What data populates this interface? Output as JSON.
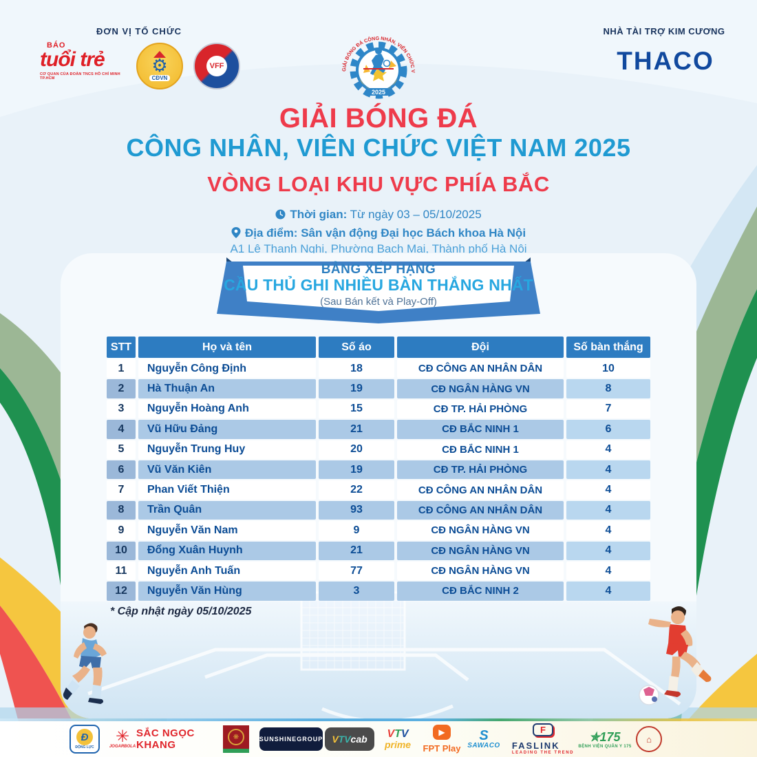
{
  "colors": {
    "background": "#e9f2f9",
    "title_red": "#ee3b4b",
    "title_blue": "#1f9ad2",
    "info_blue": "#2f86c5",
    "header_row": "#2d7cc1",
    "even_row": "#abc9e6",
    "cell_text": "#0b4c95",
    "thaco_navy": "#11499e",
    "ribbon_blue": "#3f80c6",
    "green_band": "#1f9150",
    "yellow_band": "#f5c63f",
    "red_band": "#ef5350"
  },
  "organizers": {
    "label": "ĐƠN VỊ TỔ CHỨC",
    "tuoitre": {
      "bao": "BÁO",
      "name": "tuổi trẻ",
      "tagline": "CƠ QUAN CỦA ĐOÀN TNCS HỒ CHÍ MINH TP.HCM"
    },
    "cdvn_label": "CĐVN",
    "vff_label": "VFF"
  },
  "sponsor_top": {
    "label": "NHÀ TÀI TRỢ KIM CƯƠNG",
    "brand": "THACO"
  },
  "event_logo": {
    "arc_text": "GIẢI BÓNG ĐÁ CÔNG NHÂN, VIÊN CHỨC VIỆT NAM",
    "year": "2025"
  },
  "title": {
    "line1": "GIẢI BÓNG ĐÁ",
    "line2": "CÔNG NHÂN, VIÊN CHỨC VIỆT NAM 2025",
    "line3": "VÒNG LOẠI KHU VỰC PHÍA BẮC"
  },
  "info": {
    "time_label": "Thời gian:",
    "time_value": " Từ ngày 03 – 05/10/2025",
    "venue_label": "Địa điểm:",
    "venue_value": " Sân vận động Đại học Bách khoa Hà Nội",
    "address": "A1 Lê Thanh Nghị, Phường Bạch Mai, Thành phố Hà Nội"
  },
  "banner": {
    "line1": "BẢNG XẾP HẠNG",
    "line2": "CẦU THỦ GHI NHIỀU BÀN THẮNG NHẤT",
    "line3": "(Sau Bán kết và Play-Off)"
  },
  "table": {
    "headers": [
      "STT",
      "Họ và tên",
      "Số áo",
      "Đội",
      "Số bàn thắng"
    ],
    "rows": [
      [
        "1",
        "Nguyễn Công Định",
        "18",
        "CĐ CÔNG AN NHÂN DÂN",
        "10"
      ],
      [
        "2",
        "Hà Thuận An",
        "19",
        "CĐ NGÂN HÀNG VN",
        "8"
      ],
      [
        "3",
        "Nguyễn Hoàng Anh",
        "15",
        "CĐ TP. HẢI PHÒNG",
        "7"
      ],
      [
        "4",
        "Vũ Hữu Đảng",
        "21",
        "CĐ BẮC NINH 1",
        "6"
      ],
      [
        "5",
        "Nguyễn Trung Huy",
        "20",
        "CĐ BẮC NINH 1",
        "4"
      ],
      [
        "6",
        "Vũ Văn Kiên",
        "19",
        "CĐ TP. HẢI PHÒNG",
        "4"
      ],
      [
        "7",
        "Phan Viết Thiện",
        "22",
        "CĐ CÔNG AN NHÂN DÂN",
        "4"
      ],
      [
        "8",
        "Trần Quân",
        "93",
        "CĐ CÔNG AN NHÂN DÂN",
        "4"
      ],
      [
        "9",
        "Nguyễn Văn Nam",
        "9",
        "CĐ NGÂN HÀNG VN",
        "4"
      ],
      [
        "10",
        "Đổng Xuân Huynh",
        "21",
        "CĐ NGÂN HÀNG VN",
        "4"
      ],
      [
        "11",
        "Nguyễn Anh Tuấn",
        "77",
        "CĐ NGÂN HÀNG VN",
        "4"
      ],
      [
        "12",
        "Nguyễn Văn Hùng",
        "3",
        "CĐ BẮC NINH 2",
        "4"
      ]
    ]
  },
  "footnote": "* Cập nhật ngày 05/10/2025",
  "footer_sponsors": {
    "dong_luc": {
      "d": "Đ",
      "label": "ĐỘNG LỰC"
    },
    "jogarbola": {
      "star": "✳",
      "label": "JOGARBOLA"
    },
    "sac_ngoc_khang": {
      "label": "SẮC NGỌC KHANG"
    },
    "sunshine": {
      "label": "SUNSHINEGROUP"
    },
    "vtvcab": {
      "v": "V",
      "t": "TV",
      "cab": "cab"
    },
    "vtv_prime": {
      "v1": "V",
      "v2": "T",
      "v3": "V",
      "prime": "prime"
    },
    "fpt_play": {
      "play": "▶",
      "label": "FPT Play"
    },
    "sawaco": {
      "s": "S",
      "label": "SAWACO"
    },
    "faslink": {
      "f": "F",
      "label": "FASLINK",
      "tagline": "LEADING THE TREND"
    },
    "hospital_175": {
      "num": "✯175",
      "label": "BỆNH VIỆN QUÂN Y 175"
    }
  }
}
